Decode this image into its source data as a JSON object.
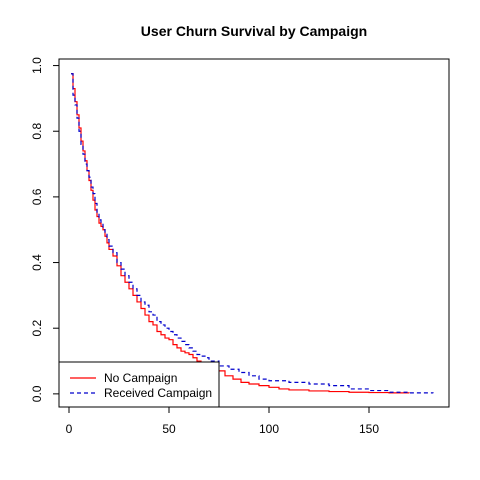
{
  "chart_data": {
    "type": "line",
    "chart_kind": "step survival curve",
    "title": "User Churn Survival by Campaign",
    "xlabel": "",
    "ylabel": "",
    "xlim": [
      -5,
      190
    ],
    "ylim": [
      -0.04,
      1.02
    ],
    "x_ticks": [
      0,
      50,
      100,
      150
    ],
    "x_tick_labels": [
      "0",
      "50",
      "100",
      "150"
    ],
    "y_ticks": [
      0.0,
      0.2,
      0.4,
      0.6,
      0.8,
      1.0
    ],
    "y_tick_labels": [
      "0.0",
      "0.2",
      "0.4",
      "0.6",
      "0.8",
      "1.0"
    ],
    "grid": false,
    "legend_position": "bottom-left",
    "series": [
      {
        "name": "No Campaign",
        "color": "#ff0000",
        "line_style": "solid",
        "x": [
          1,
          2,
          3,
          4,
          5,
          6,
          7,
          8,
          9,
          10,
          11,
          12,
          13,
          14,
          15,
          16,
          17,
          18,
          19,
          20,
          22,
          24,
          26,
          28,
          30,
          32,
          34,
          36,
          38,
          40,
          42,
          44,
          46,
          48,
          50,
          52,
          54,
          56,
          58,
          60,
          62,
          64,
          66,
          68,
          70,
          74,
          78,
          82,
          86,
          90,
          95,
          100,
          105,
          110,
          120,
          130,
          140,
          150,
          160,
          170
        ],
        "y": [
          0.975,
          0.93,
          0.89,
          0.85,
          0.81,
          0.77,
          0.74,
          0.71,
          0.68,
          0.65,
          0.62,
          0.59,
          0.56,
          0.54,
          0.52,
          0.51,
          0.5,
          0.48,
          0.46,
          0.44,
          0.42,
          0.39,
          0.36,
          0.34,
          0.32,
          0.3,
          0.28,
          0.26,
          0.24,
          0.22,
          0.21,
          0.19,
          0.18,
          0.17,
          0.165,
          0.15,
          0.14,
          0.13,
          0.125,
          0.12,
          0.11,
          0.1,
          0.095,
          0.09,
          0.085,
          0.07,
          0.055,
          0.045,
          0.035,
          0.03,
          0.025,
          0.02,
          0.015,
          0.012,
          0.009,
          0.007,
          0.005,
          0.004,
          0.003,
          0.002
        ]
      },
      {
        "name": "Received Campaign",
        "color": "#0000cc",
        "line_style": "dashed",
        "x": [
          1,
          2,
          3,
          4,
          5,
          6,
          7,
          8,
          9,
          10,
          11,
          12,
          13,
          14,
          15,
          16,
          17,
          18,
          19,
          20,
          22,
          24,
          26,
          28,
          30,
          32,
          34,
          36,
          38,
          40,
          42,
          44,
          46,
          48,
          50,
          52,
          54,
          56,
          58,
          60,
          62,
          64,
          66,
          68,
          70,
          75,
          80,
          85,
          90,
          95,
          100,
          110,
          120,
          130,
          140,
          150,
          160,
          170,
          182
        ],
        "y": [
          0.975,
          0.91,
          0.88,
          0.84,
          0.8,
          0.76,
          0.73,
          0.7,
          0.68,
          0.66,
          0.63,
          0.61,
          0.58,
          0.55,
          0.53,
          0.52,
          0.5,
          0.49,
          0.47,
          0.45,
          0.43,
          0.4,
          0.38,
          0.36,
          0.34,
          0.32,
          0.3,
          0.28,
          0.27,
          0.25,
          0.24,
          0.22,
          0.21,
          0.2,
          0.19,
          0.18,
          0.17,
          0.16,
          0.15,
          0.14,
          0.13,
          0.12,
          0.115,
          0.11,
          0.1,
          0.085,
          0.075,
          0.065,
          0.055,
          0.045,
          0.04,
          0.035,
          0.03,
          0.025,
          0.015,
          0.01,
          0.005,
          0.003,
          0.002
        ]
      }
    ]
  }
}
